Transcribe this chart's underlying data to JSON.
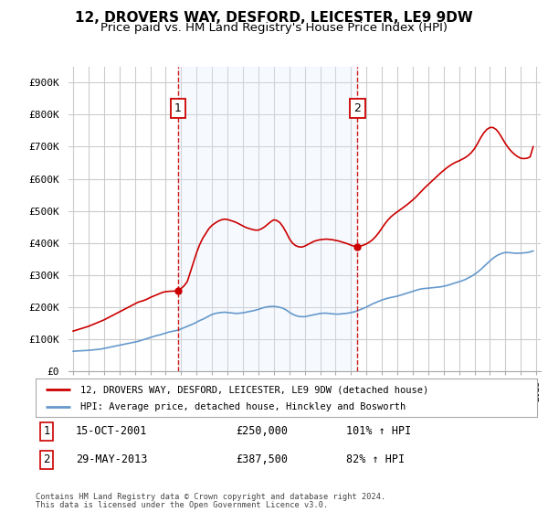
{
  "title": "12, DROVERS WAY, DESFORD, LEICESTER, LE9 9DW",
  "subtitle": "Price paid vs. HM Land Registry's House Price Index (HPI)",
  "ylim": [
    0,
    950000
  ],
  "yticks": [
    0,
    100000,
    200000,
    300000,
    400000,
    500000,
    600000,
    700000,
    800000,
    900000
  ],
  "ytick_labels": [
    "£0",
    "£100K",
    "£200K",
    "£300K",
    "£400K",
    "£500K",
    "£600K",
    "£700K",
    "£800K",
    "£900K"
  ],
  "transaction1": {
    "date_num": 2001.79,
    "price": 250000,
    "label": "1",
    "date_str": "15-OCT-2001",
    "hpi_pct": "101% ↑ HPI"
  },
  "transaction2": {
    "date_num": 2013.41,
    "price": 387500,
    "label": "2",
    "date_str": "29-MAY-2013",
    "hpi_pct": "82% ↑ HPI"
  },
  "legend_line1": "12, DROVERS WAY, DESFORD, LEICESTER, LE9 9DW (detached house)",
  "legend_line2": "HPI: Average price, detached house, Hinckley and Bosworth",
  "footer1": "Contains HM Land Registry data © Crown copyright and database right 2024.",
  "footer2": "This data is licensed under the Open Government Licence v3.0.",
  "line_color_red": "#cc0000",
  "line_color_blue": "#6699cc",
  "shade_color": "#ddeeff",
  "vline_color": "#cc0000",
  "background_color": "#ffffff",
  "grid_color": "#cccccc",
  "title_fontsize": 11,
  "subtitle_fontsize": 9.5,
  "hpi_data": {
    "years": [
      1995.0,
      1995.2,
      1995.4,
      1995.6,
      1995.8,
      1996.0,
      1996.2,
      1996.4,
      1996.6,
      1996.8,
      1997.0,
      1997.2,
      1997.4,
      1997.6,
      1997.8,
      1998.0,
      1998.2,
      1998.4,
      1998.6,
      1998.8,
      1999.0,
      1999.2,
      1999.4,
      1999.6,
      1999.8,
      2000.0,
      2000.2,
      2000.4,
      2000.6,
      2000.8,
      2001.0,
      2001.2,
      2001.4,
      2001.6,
      2001.8,
      2002.0,
      2002.2,
      2002.4,
      2002.6,
      2002.8,
      2003.0,
      2003.2,
      2003.4,
      2003.6,
      2003.8,
      2004.0,
      2004.2,
      2004.4,
      2004.6,
      2004.8,
      2005.0,
      2005.2,
      2005.4,
      2005.6,
      2005.8,
      2006.0,
      2006.2,
      2006.4,
      2006.6,
      2006.8,
      2007.0,
      2007.2,
      2007.4,
      2007.6,
      2007.8,
      2008.0,
      2008.2,
      2008.4,
      2008.6,
      2008.8,
      2009.0,
      2009.2,
      2009.4,
      2009.6,
      2009.8,
      2010.0,
      2010.2,
      2010.4,
      2010.6,
      2010.8,
      2011.0,
      2011.2,
      2011.4,
      2011.6,
      2011.8,
      2012.0,
      2012.2,
      2012.4,
      2012.6,
      2012.8,
      2013.0,
      2013.2,
      2013.4,
      2013.6,
      2013.8,
      2014.0,
      2014.2,
      2014.4,
      2014.6,
      2014.8,
      2015.0,
      2015.2,
      2015.4,
      2015.6,
      2015.8,
      2016.0,
      2016.2,
      2016.4,
      2016.6,
      2016.8,
      2017.0,
      2017.2,
      2017.4,
      2017.6,
      2017.8,
      2018.0,
      2018.2,
      2018.4,
      2018.6,
      2018.8,
      2019.0,
      2019.2,
      2019.4,
      2019.6,
      2019.8,
      2020.0,
      2020.2,
      2020.4,
      2020.6,
      2020.8,
      2021.0,
      2021.2,
      2021.4,
      2021.6,
      2021.8,
      2022.0,
      2022.2,
      2022.4,
      2022.6,
      2022.8,
      2023.0,
      2023.2,
      2023.4,
      2023.6,
      2023.8,
      2024.0,
      2024.2,
      2024.4,
      2024.6,
      2024.8
    ],
    "values": [
      62000,
      63000,
      63500,
      64000,
      64500,
      65000,
      66000,
      67000,
      68000,
      69000,
      71000,
      73000,
      75000,
      77000,
      79000,
      81000,
      83000,
      85000,
      87000,
      89000,
      91000,
      93000,
      96000,
      99000,
      102000,
      105000,
      108000,
      111000,
      113000,
      116000,
      119000,
      122000,
      124000,
      126000,
      128000,
      132000,
      136000,
      140000,
      144000,
      148000,
      153000,
      158000,
      162000,
      167000,
      172000,
      177000,
      180000,
      182000,
      183000,
      184000,
      183000,
      182000,
      181000,
      180000,
      181000,
      182000,
      184000,
      186000,
      188000,
      190000,
      193000,
      196000,
      199000,
      201000,
      202000,
      202000,
      201000,
      199000,
      196000,
      191000,
      184000,
      178000,
      174000,
      171000,
      170000,
      170000,
      172000,
      174000,
      176000,
      178000,
      180000,
      181000,
      181000,
      180000,
      179000,
      178000,
      178000,
      179000,
      180000,
      181000,
      183000,
      185000,
      188000,
      192000,
      196000,
      200000,
      205000,
      210000,
      214000,
      218000,
      222000,
      225000,
      228000,
      230000,
      232000,
      234000,
      237000,
      240000,
      243000,
      246000,
      249000,
      252000,
      255000,
      257000,
      258000,
      259000,
      260000,
      261000,
      262000,
      263000,
      265000,
      267000,
      270000,
      273000,
      276000,
      279000,
      282000,
      286000,
      291000,
      296000,
      302000,
      309000,
      317000,
      326000,
      335000,
      344000,
      352000,
      359000,
      364000,
      368000,
      370000,
      370000,
      369000,
      368000,
      368000,
      368000,
      369000,
      370000,
      372000,
      375000
    ]
  },
  "property_data": {
    "years": [
      1995.0,
      1995.2,
      1995.4,
      1995.6,
      1995.8,
      1996.0,
      1996.2,
      1996.4,
      1996.6,
      1996.8,
      1997.0,
      1997.2,
      1997.4,
      1997.6,
      1997.8,
      1998.0,
      1998.2,
      1998.4,
      1998.6,
      1998.8,
      1999.0,
      1999.2,
      1999.4,
      1999.6,
      1999.8,
      2000.0,
      2000.2,
      2000.4,
      2000.6,
      2000.8,
      2001.0,
      2001.2,
      2001.4,
      2001.6,
      2001.79,
      2002.0,
      2002.2,
      2002.4,
      2002.6,
      2002.8,
      2003.0,
      2003.2,
      2003.4,
      2003.6,
      2003.8,
      2004.0,
      2004.2,
      2004.4,
      2004.6,
      2004.8,
      2005.0,
      2005.2,
      2005.4,
      2005.6,
      2005.8,
      2006.0,
      2006.2,
      2006.4,
      2006.6,
      2006.8,
      2007.0,
      2007.2,
      2007.4,
      2007.6,
      2007.8,
      2008.0,
      2008.2,
      2008.4,
      2008.6,
      2008.8,
      2009.0,
      2009.2,
      2009.4,
      2009.6,
      2009.8,
      2010.0,
      2010.2,
      2010.4,
      2010.6,
      2010.8,
      2011.0,
      2011.2,
      2011.4,
      2011.6,
      2011.8,
      2012.0,
      2012.2,
      2012.4,
      2012.6,
      2012.8,
      2013.0,
      2013.2,
      2013.41,
      2013.6,
      2013.8,
      2014.0,
      2014.2,
      2014.4,
      2014.6,
      2014.8,
      2015.0,
      2015.2,
      2015.4,
      2015.6,
      2015.8,
      2016.0,
      2016.2,
      2016.4,
      2016.6,
      2016.8,
      2017.0,
      2017.2,
      2017.4,
      2017.6,
      2017.8,
      2018.0,
      2018.2,
      2018.4,
      2018.6,
      2018.8,
      2019.0,
      2019.2,
      2019.4,
      2019.6,
      2019.8,
      2020.0,
      2020.2,
      2020.4,
      2020.6,
      2020.8,
      2021.0,
      2021.2,
      2021.4,
      2021.6,
      2021.8,
      2022.0,
      2022.2,
      2022.4,
      2022.6,
      2022.8,
      2023.0,
      2023.2,
      2023.4,
      2023.6,
      2023.8,
      2024.0,
      2024.2,
      2024.4,
      2024.6,
      2024.8
    ],
    "values": [
      125000,
      128000,
      131000,
      134000,
      137000,
      140000,
      144000,
      148000,
      152000,
      156000,
      160000,
      165000,
      170000,
      175000,
      180000,
      185000,
      190000,
      195000,
      200000,
      205000,
      210000,
      215000,
      218000,
      221000,
      225000,
      230000,
      234000,
      238000,
      242000,
      246000,
      248000,
      249000,
      249500,
      250000,
      250000,
      258000,
      267000,
      280000,
      310000,
      340000,
      370000,
      395000,
      415000,
      430000,
      445000,
      455000,
      462000,
      468000,
      472000,
      474000,
      473000,
      470000,
      467000,
      463000,
      458000,
      453000,
      448000,
      445000,
      442000,
      440000,
      440000,
      444000,
      450000,
      458000,
      466000,
      472000,
      470000,
      463000,
      450000,
      433000,
      414000,
      400000,
      392000,
      388000,
      387000,
      390000,
      395000,
      400000,
      405000,
      408000,
      410000,
      411000,
      412000,
      411000,
      410000,
      408000,
      406000,
      403000,
      400000,
      397000,
      393000,
      390000,
      387500,
      390000,
      393000,
      397000,
      403000,
      410000,
      420000,
      432000,
      446000,
      460000,
      472000,
      482000,
      490000,
      497000,
      504000,
      511000,
      518000,
      526000,
      534000,
      543000,
      553000,
      563000,
      573000,
      582000,
      591000,
      600000,
      609000,
      618000,
      626000,
      634000,
      641000,
      647000,
      652000,
      656000,
      661000,
      666000,
      673000,
      682000,
      694000,
      710000,
      728000,
      743000,
      754000,
      760000,
      760000,
      754000,
      742000,
      726000,
      710000,
      696000,
      685000,
      676000,
      669000,
      664000,
      663000,
      664000,
      668000,
      700000
    ]
  }
}
